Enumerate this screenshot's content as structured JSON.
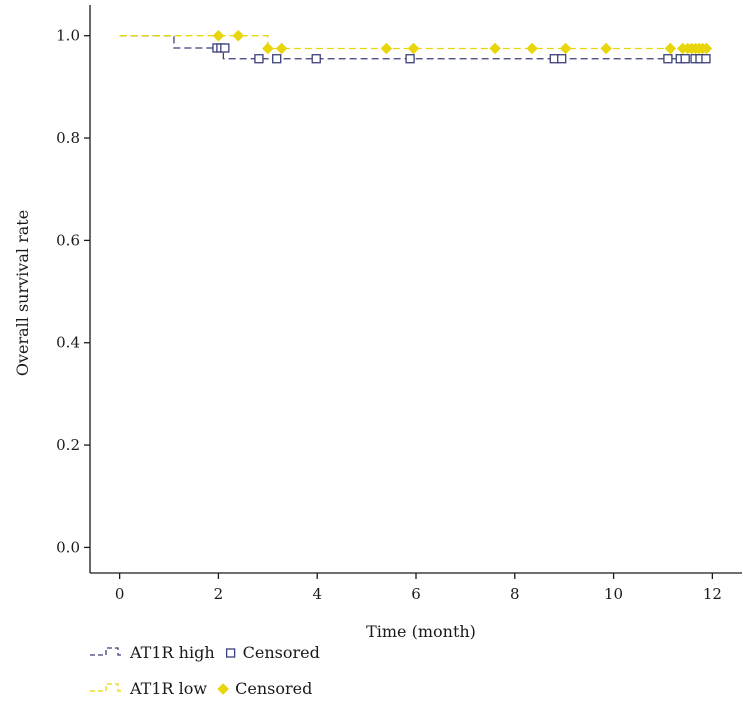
{
  "chart_data": {
    "type": "line",
    "subtype": "kaplan-meier",
    "title": "",
    "xlabel": "Time (month)",
    "ylabel": "Overall survival rate",
    "xlim": [
      -0.6,
      12.6
    ],
    "ylim": [
      -0.05,
      1.06
    ],
    "x_ticks": [
      0,
      2,
      4,
      6,
      8,
      10,
      12
    ],
    "y_ticks": [
      0.0,
      0.2,
      0.4,
      0.6,
      0.8,
      1.0
    ],
    "x_tick_labels": [
      "0",
      "2",
      "4",
      "6",
      "8",
      "10",
      "12"
    ],
    "y_tick_labels": [
      "0.0",
      "0.2",
      "0.4",
      "0.6",
      "0.8",
      "1.0"
    ],
    "grid": false,
    "legend_position": "bottom-left",
    "series": [
      {
        "name": "AT1R high",
        "color": "#3b3f7a",
        "line_style": "dashed",
        "steps": [
          [
            0,
            1.0
          ],
          [
            1.1,
            0.976
          ],
          [
            2.1,
            0.955
          ],
          [
            11.9,
            0.955
          ]
        ],
        "censored": [
          [
            1.97,
            0.976
          ],
          [
            2.05,
            0.976
          ],
          [
            2.13,
            0.976
          ],
          [
            2.82,
            0.955
          ],
          [
            3.18,
            0.955
          ],
          [
            3.98,
            0.955
          ],
          [
            5.88,
            0.955
          ],
          [
            8.8,
            0.955
          ],
          [
            8.95,
            0.955
          ],
          [
            11.1,
            0.955
          ],
          [
            11.35,
            0.955
          ],
          [
            11.45,
            0.955
          ],
          [
            11.65,
            0.955
          ],
          [
            11.75,
            0.955
          ],
          [
            11.87,
            0.955
          ]
        ],
        "censored_marker": "square-open",
        "legend_censored_label": "Censored"
      },
      {
        "name": "AT1R low",
        "color": "#e8d60a",
        "line_style": "dashed",
        "steps": [
          [
            0,
            1.0
          ],
          [
            3.0,
            0.975
          ],
          [
            11.9,
            0.975
          ]
        ],
        "censored": [
          [
            2.0,
            1.0
          ],
          [
            2.4,
            1.0
          ],
          [
            3.0,
            0.975
          ],
          [
            3.28,
            0.975
          ],
          [
            5.4,
            0.975
          ],
          [
            5.95,
            0.975
          ],
          [
            7.6,
            0.975
          ],
          [
            8.35,
            0.975
          ],
          [
            9.03,
            0.975
          ],
          [
            9.85,
            0.975
          ],
          [
            11.15,
            0.975
          ],
          [
            11.4,
            0.975
          ],
          [
            11.5,
            0.975
          ],
          [
            11.58,
            0.975
          ],
          [
            11.66,
            0.975
          ],
          [
            11.73,
            0.975
          ],
          [
            11.8,
            0.975
          ],
          [
            11.88,
            0.975
          ]
        ],
        "censored_marker": "diamond-filled",
        "legend_censored_label": "Censored"
      }
    ]
  }
}
